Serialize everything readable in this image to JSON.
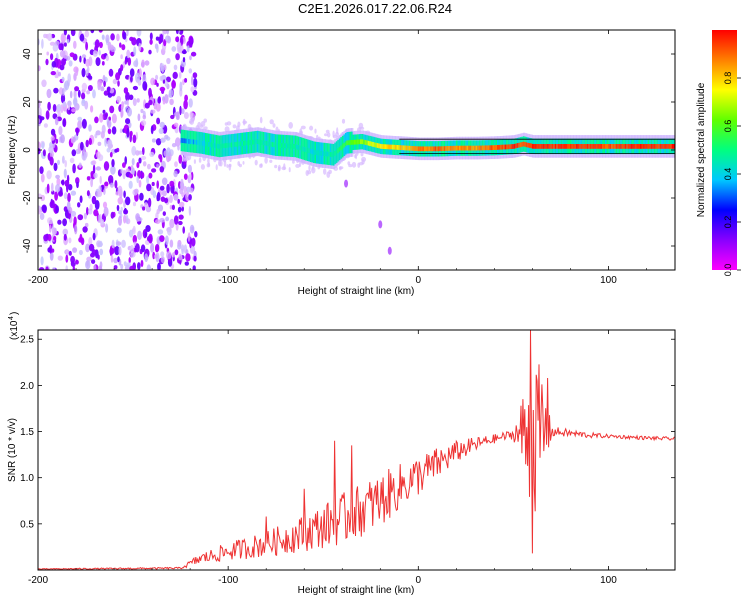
{
  "title": "C2E1.2026.017.22.06.R24",
  "chart_data": [
    {
      "type": "heatmap",
      "name": "spectrogram",
      "xlabel": "Height of straight line (km)",
      "ylabel": "Frequency (Hz)",
      "xlim": [
        -200,
        135
      ],
      "ylim": [
        -50,
        50
      ],
      "x_ticks": [
        "-200",
        "-100",
        "0",
        "100"
      ],
      "x_tick_values": [
        -200,
        -100,
        0,
        100
      ],
      "y_ticks": [
        "40",
        "20",
        "0",
        "-20",
        "-40"
      ],
      "y_tick_values": [
        40,
        20,
        0,
        -20,
        -40
      ],
      "colorbar": {
        "label": "Normalized spectral amplitude",
        "range": [
          0,
          1
        ],
        "ticks": [
          "0.0",
          "0.2",
          "0.4",
          "0.6",
          "0.8"
        ],
        "tick_values": [
          0.0,
          0.2,
          0.4,
          0.6,
          0.8
        ],
        "colors": [
          "#ff00ff",
          "#8800ff",
          "#0000ff",
          "#00c8ff",
          "#00ff80",
          "#60ff00",
          "#ffff00",
          "#ff8000",
          "#ff0000"
        ]
      },
      "noise_region_x": [
        -200,
        -123
      ],
      "ridge": {
        "x": [
          -125,
          -115,
          -105,
          -95,
          -85,
          -75,
          -65,
          -55,
          -45,
          -38,
          -30,
          -20,
          -10,
          0,
          10,
          20,
          30,
          40,
          50,
          55,
          60,
          70,
          80,
          90,
          100,
          110,
          120,
          135
        ],
        "y": [
          4,
          3,
          1.5,
          2.5,
          3.5,
          2,
          1.5,
          -1,
          -2,
          3,
          3.5,
          1.5,
          1,
          0.5,
          0.5,
          0.8,
          0.8,
          1,
          1.5,
          2.5,
          1.5,
          1.5,
          1.5,
          1.5,
          1.5,
          1.5,
          1.5,
          1.5
        ],
        "amplitude": [
          0.35,
          0.45,
          0.5,
          0.5,
          0.5,
          0.5,
          0.5,
          0.45,
          0.5,
          0.6,
          0.7,
          0.8,
          0.85,
          0.9,
          0.95,
          0.9,
          0.9,
          0.95,
          1,
          0.95,
          1,
          1,
          1,
          1,
          0.95,
          1,
          1,
          1
        ]
      }
    },
    {
      "type": "line",
      "name": "snr",
      "xlabel": "Height of straight line (km)",
      "ylabel": "SNR (10 * v/v)",
      "scale_label": "(x10",
      "scale_exponent": "4",
      "scale_suffix": ")",
      "xlim": [
        -200,
        135
      ],
      "ylim": [
        0,
        2.6
      ],
      "x_ticks": [
        "-200",
        "-100",
        "0",
        "100"
      ],
      "x_tick_values": [
        -200,
        -100,
        0,
        100
      ],
      "y_ticks": [
        "0.5",
        "1.0",
        "1.5",
        "2.0",
        "2.5"
      ],
      "y_tick_values": [
        0.5,
        1.0,
        1.5,
        2.0,
        2.5
      ],
      "color": "#ee3333",
      "envelope": {
        "x": [
          -200,
          -125,
          -115,
          -100,
          -80,
          -60,
          -40,
          -20,
          -10,
          0,
          10,
          20,
          30,
          40,
          50,
          55,
          60,
          65,
          70,
          80,
          90,
          100,
          110,
          120,
          135
        ],
        "baseline": [
          0.01,
          0.02,
          0.12,
          0.2,
          0.28,
          0.4,
          0.55,
          0.75,
          0.9,
          1.02,
          1.15,
          1.28,
          1.36,
          1.42,
          1.47,
          1.48,
          1.45,
          1.48,
          1.5,
          1.48,
          1.46,
          1.45,
          1.44,
          1.43,
          1.42
        ],
        "jitter": [
          0.005,
          0.01,
          0.06,
          0.1,
          0.14,
          0.2,
          0.28,
          0.3,
          0.25,
          0.22,
          0.18,
          0.12,
          0.08,
          0.05,
          0.05,
          0.45,
          0.9,
          0.7,
          0.06,
          0.04,
          0.03,
          0.02,
          0.02,
          0.02,
          0.02
        ]
      },
      "spikes": [
        {
          "x": -80,
          "y": 0.58
        },
        {
          "x": -60,
          "y": 0.88
        },
        {
          "x": -44,
          "y": 1.4
        },
        {
          "x": -35,
          "y": 1.35
        },
        {
          "x": 59,
          "y": 2.6
        },
        {
          "x": 60,
          "y": 0.18
        },
        {
          "x": 68,
          "y": 2.08
        }
      ]
    }
  ]
}
